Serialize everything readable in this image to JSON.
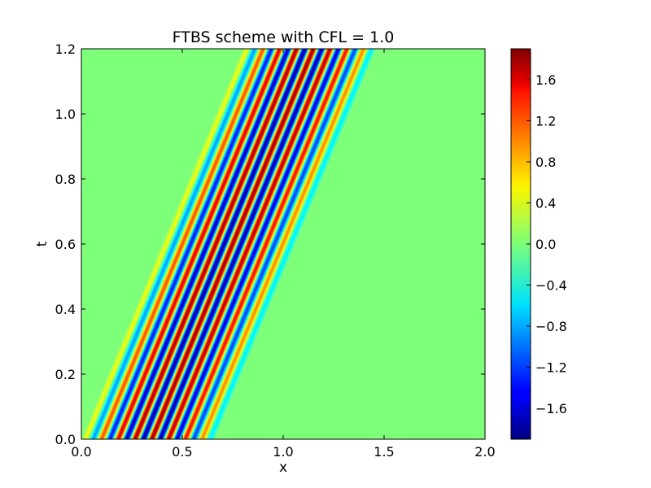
{
  "chart_data": {
    "type": "heatmap",
    "title": "FTBS scheme with CFL = 1.0",
    "xlabel": "x",
    "ylabel": "t",
    "xlim": [
      0.0,
      2.0
    ],
    "ylim": [
      0.0,
      1.2
    ],
    "x_ticks": [
      0.0,
      0.5,
      1.0,
      1.5,
      2.0
    ],
    "x_tick_labels": [
      "0.0",
      "0.5",
      "1.0",
      "1.5",
      "2.0"
    ],
    "y_ticks": [
      0.0,
      0.2,
      0.4,
      0.6,
      0.8,
      1.0,
      1.2
    ],
    "y_tick_labels": [
      "0.0",
      "0.2",
      "0.4",
      "0.6",
      "0.8",
      "1.0",
      "1.2"
    ],
    "colormap": "jet",
    "colorbar": {
      "vmin": -1.9,
      "vmax": 1.9,
      "ticks": [
        -1.6,
        -1.2,
        -0.8,
        -0.4,
        0.0,
        0.4,
        0.8,
        1.2,
        1.6
      ],
      "tick_labels": [
        "−1.6",
        "−1.2",
        "−0.8",
        "−0.4",
        "0.0",
        "0.4",
        "0.8",
        "1.2",
        "1.6"
      ]
    },
    "field": {
      "description_of_data": "advected wave packet u(x,t)",
      "advection_speed": 0.667,
      "initial_support": [
        0.0,
        0.667
      ],
      "wavelength": 0.0833,
      "amplitude_peak": 1.8
    },
    "grid": false
  }
}
